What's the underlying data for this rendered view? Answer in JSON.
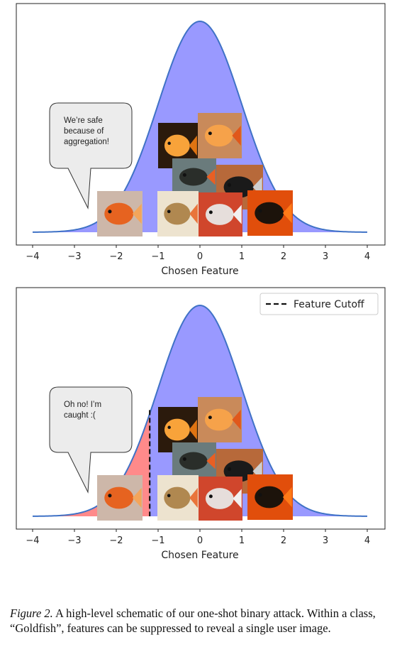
{
  "figure": {
    "panels": [
      {
        "id": "top",
        "bubble": [
          "We’re safe",
          "because of",
          "aggregation!"
        ],
        "legend": null,
        "cutoff": null
      },
      {
        "id": "bottom",
        "bubble": [
          "Oh no! I’m",
          "caught :("
        ],
        "legend": "Feature Cutoff",
        "cutoff": -1.2
      }
    ],
    "xticks": [
      "−4",
      "−3",
      "−2",
      "−1",
      "0",
      "1",
      "2",
      "3",
      "4"
    ],
    "xlabel": "Chosen Feature"
  },
  "chart_data": [
    {
      "type": "area",
      "distribution": "normal",
      "xlabel": "Chosen Feature",
      "xlim": [
        -4,
        4
      ],
      "fill_color": "#9999ff",
      "line_color": "#3f72c6",
      "annotation": "We’re safe because of aggregation!",
      "images": "goldfish photographs"
    },
    {
      "type": "area",
      "distribution": "normal",
      "xlabel": "Chosen Feature",
      "xlim": [
        -4,
        4
      ],
      "fill_color": "#9999ff",
      "highlight_color": "#ff8a8a",
      "line_color": "#3f72c6",
      "cutoff": -1.2,
      "legend": [
        "Feature Cutoff"
      ],
      "legend_position": "top-right",
      "annotation": "Oh no! I’m caught :(",
      "images": "goldfish photographs"
    }
  ],
  "caption": {
    "lead": "Figure 2.",
    "text": "A high-level schematic of our one-shot binary attack. Within a class, “Goldfish”, features can be suppressed to reveal a single user image."
  }
}
